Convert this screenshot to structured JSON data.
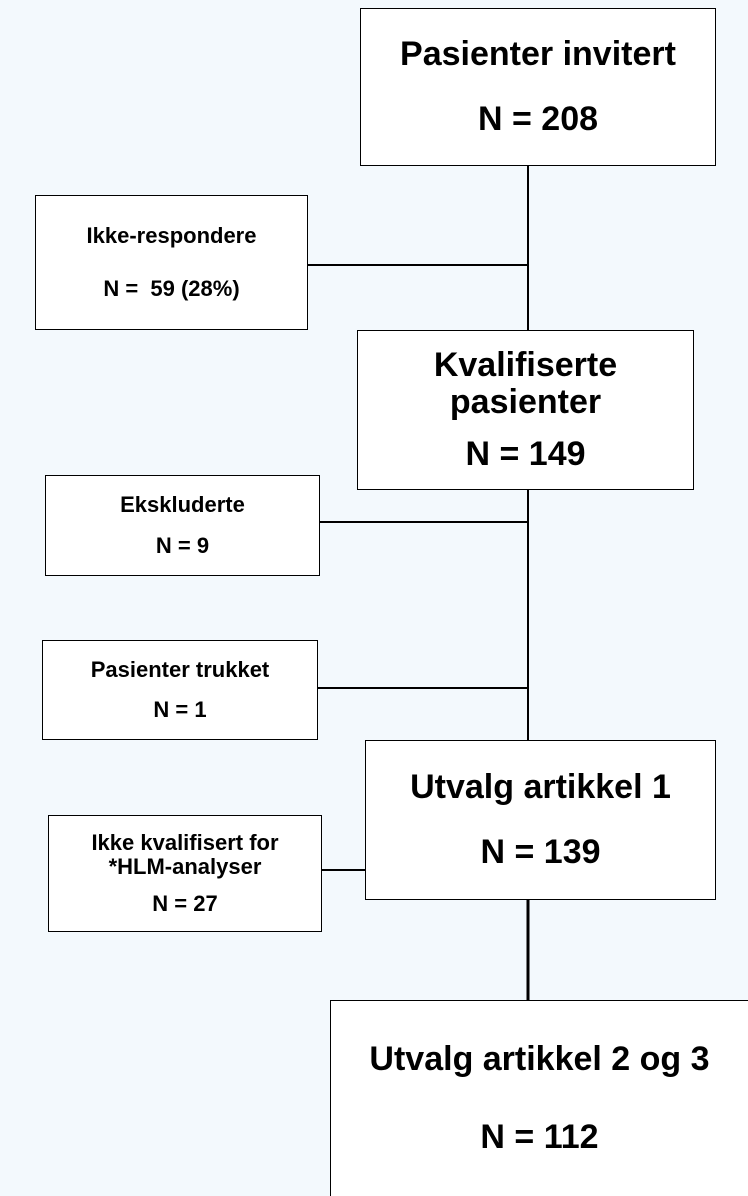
{
  "nodes": [
    {
      "lines": [
        "Pasienter invitert",
        "N = 208"
      ]
    },
    {
      "lines": [
        "Ikke-respondere",
        "N =  59 (28%)"
      ]
    },
    {
      "lines": [
        "Kvalifiserte",
        "pasienter",
        "N = 149"
      ]
    },
    {
      "lines": [
        "Ekskluderte",
        "N = 9"
      ]
    },
    {
      "lines": [
        "Pasienter trukket",
        "N = 1"
      ]
    },
    {
      "lines": [
        "Utvalg artikkel 1",
        "N = 139"
      ]
    },
    {
      "lines": [
        "Ikke kvalifisert for",
        "*HLM-analyser",
        "N = 27"
      ]
    },
    {
      "lines": [
        "Utvalg artikkel 2 og 3",
        "N = 112"
      ]
    }
  ]
}
